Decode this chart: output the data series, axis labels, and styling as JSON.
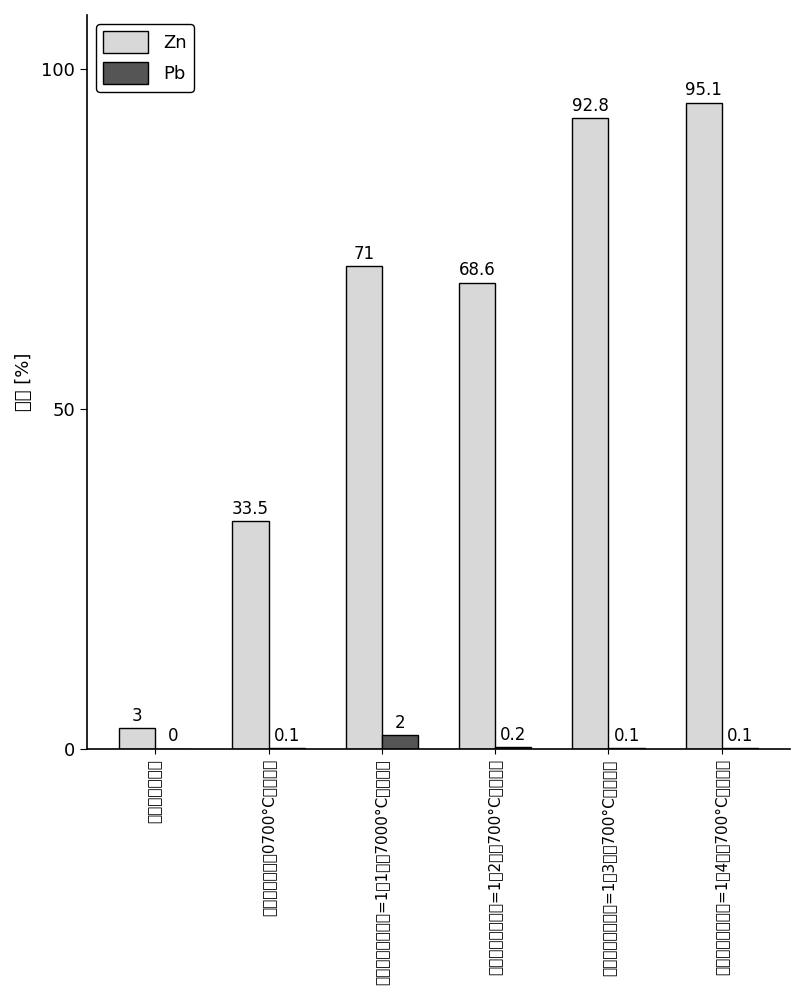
{
  "categories": [
    "初始针铁矿污泥",
    "针铁矿污泥（在0700°C下焉烧）",
    "针铁矿：黄铜铁矿=1：1（在7000°C下焉烧）",
    "针铁矿：黄铜铁矿=1：2（在700°C下焉烧）",
    "针铁矿：黄铜铁矿=1：3（在700°C下焉烧）",
    "针铁矿：黄铜铁矿=1：4（在700°C下焉烧）"
  ],
  "zn_values": [
    3,
    33.5,
    71,
    68.6,
    92.8,
    95.1
  ],
  "pb_values": [
    0,
    0.1,
    2,
    0.2,
    0.1,
    0.1
  ],
  "zn_color": "#d8d8d8",
  "pb_color": "#555555",
  "bar_edge_color": "#000000",
  "ylabel": "浸出 [%]",
  "ylim": [
    0,
    108
  ],
  "yticks": [
    0,
    50,
    100
  ],
  "legend_labels": [
    "Zn",
    "Pb"
  ],
  "bar_width": 0.32,
  "label_fontsize": 13,
  "tick_fontsize": 13,
  "annotation_fontsize": 12,
  "bg_color": "#ffffff"
}
